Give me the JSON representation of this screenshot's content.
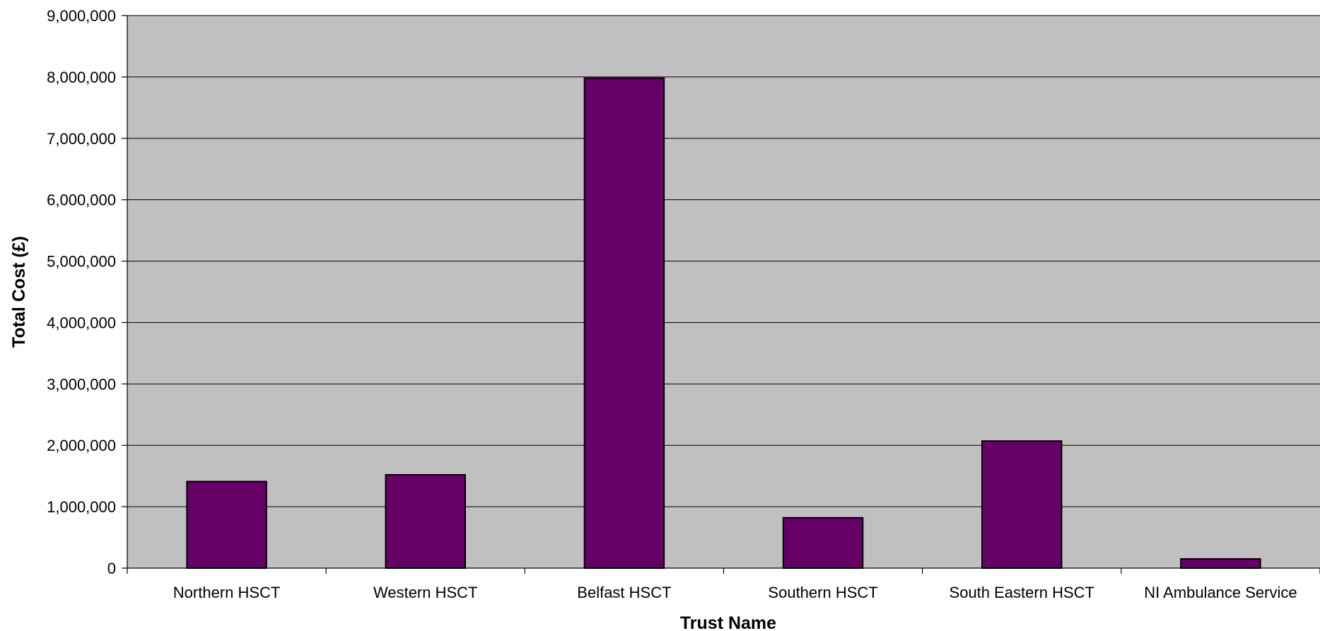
{
  "chart_data": {
    "type": "bar",
    "title": "",
    "xlabel": "Trust Name",
    "ylabel": "Total Cost (£)",
    "categories": [
      "Northern HSCT",
      "Western HSCT",
      "Belfast HSCT",
      "Southern HSCT",
      "South Eastern HSCT",
      "NI Ambulance Service"
    ],
    "values": [
      1410000,
      1520000,
      7980000,
      820000,
      2070000,
      150000
    ],
    "ylim": [
      0,
      9000000
    ],
    "yticks": [
      0,
      1000000,
      2000000,
      3000000,
      4000000,
      5000000,
      6000000,
      7000000,
      8000000,
      9000000
    ],
    "ytick_labels": [
      "0",
      "1,000,000",
      "2,000,000",
      "3,000,000",
      "4,000,000",
      "5,000,000",
      "6,000,000",
      "7,000,000",
      "8,000,000",
      "9,000,000"
    ],
    "grid": true,
    "legend": "none",
    "colors": {
      "bar": "#660066",
      "bar_edge": "#000000",
      "plot_background": "#c0c0c0",
      "gridline": "#000000"
    }
  }
}
